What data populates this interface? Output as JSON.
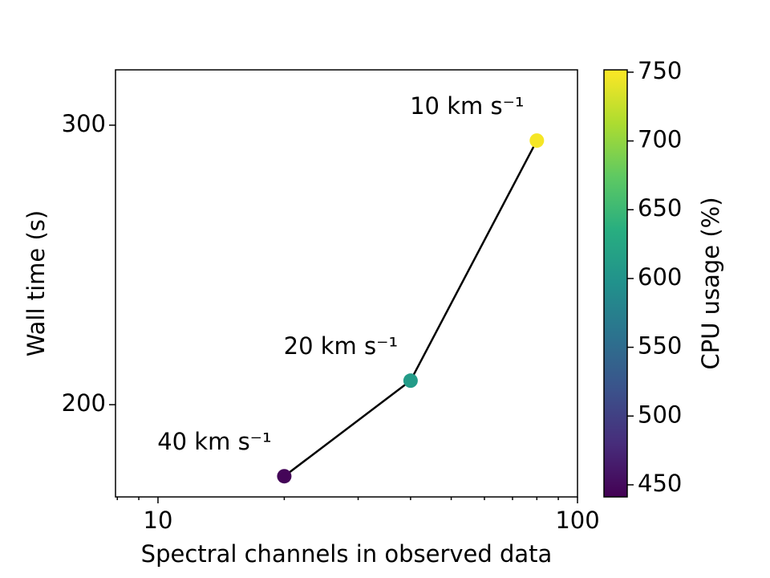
{
  "chart_data": {
    "type": "line",
    "xlabel": "Spectral channels in observed data",
    "ylabel": "Wall time (s)",
    "colorbar_label": "CPU usage (%)",
    "colormap": "viridis",
    "xscale": "log",
    "x": [
      20,
      40,
      80
    ],
    "series": [
      {
        "values": [
          174.4,
          208.6,
          294.5
        ],
        "color": "#000000",
        "cpu": [
          445,
          610,
          748
        ]
      }
    ],
    "annotations": [
      "40 km s⁻¹",
      "20 km s⁻¹",
      "10 km s⁻¹"
    ],
    "xlim": [
      7.92,
      100
    ],
    "xticks": [
      10,
      100
    ],
    "xminorticks": [
      8,
      9,
      20,
      30,
      40,
      50,
      60,
      70,
      80,
      90
    ],
    "ylim": [
      167,
      319.8
    ],
    "yticks": [
      200,
      300
    ],
    "clim": [
      441.2,
      751.7
    ],
    "cticks": [
      450,
      500,
      550,
      600,
      650,
      700,
      750
    ]
  }
}
